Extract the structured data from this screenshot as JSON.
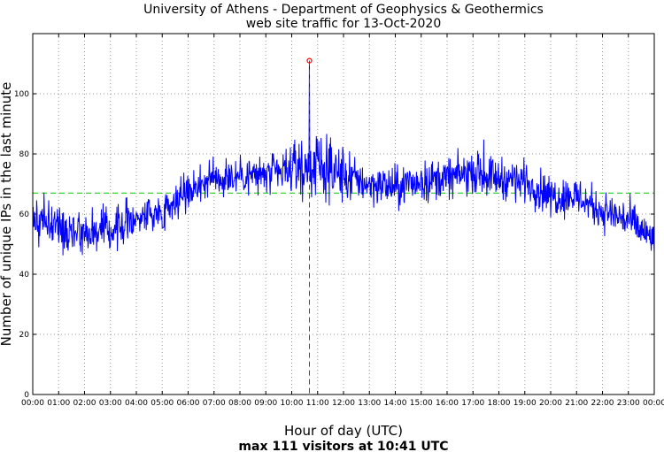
{
  "chart_data": {
    "type": "line",
    "title": "University of Athens - Department of Geophysics & Geothermics",
    "subtitle": "web site traffic for 13-Oct-2020",
    "xlabel": "Hour of day (UTC)",
    "caption": "max 111 visitors at 10:41 UTC",
    "ylabel": "Number of unique IPs in the last minute",
    "x_range_minutes": [
      0,
      1440
    ],
    "ylim": [
      0,
      120
    ],
    "x_tick_labels": [
      "00:00",
      "01:00",
      "02:00",
      "03:00",
      "04:00",
      "05:00",
      "06:00",
      "07:00",
      "08:00",
      "09:00",
      "10:00",
      "11:00",
      "12:00",
      "13:00",
      "14:00",
      "15:00",
      "16:00",
      "17:00",
      "18:00",
      "19:00",
      "20:00",
      "21:00",
      "22:00",
      "23:00",
      "00:00"
    ],
    "y_ticks": [
      0,
      20,
      40,
      60,
      80,
      100
    ],
    "grid": true,
    "series_color": "#0000ff",
    "average_value": 67,
    "average_color": "#00cc00",
    "peak": {
      "time_minutes": 641,
      "value": 111,
      "color": "#ff0000"
    },
    "hourly_profile": [
      {
        "hour": 0,
        "value": 59
      },
      {
        "hour": 1,
        "value": 56
      },
      {
        "hour": 2,
        "value": 54
      },
      {
        "hour": 3,
        "value": 55
      },
      {
        "hour": 4,
        "value": 59
      },
      {
        "hour": 5,
        "value": 61
      },
      {
        "hour": 6,
        "value": 68
      },
      {
        "hour": 7,
        "value": 72
      },
      {
        "hour": 8,
        "value": 73
      },
      {
        "hour": 9,
        "value": 73
      },
      {
        "hour": 10,
        "value": 74
      },
      {
        "hour": 11,
        "value": 76
      },
      {
        "hour": 12,
        "value": 73
      },
      {
        "hour": 13,
        "value": 70
      },
      {
        "hour": 14,
        "value": 69
      },
      {
        "hour": 15,
        "value": 71
      },
      {
        "hour": 16,
        "value": 72
      },
      {
        "hour": 17,
        "value": 74
      },
      {
        "hour": 18,
        "value": 72
      },
      {
        "hour": 19,
        "value": 71
      },
      {
        "hour": 20,
        "value": 66
      },
      {
        "hour": 21,
        "value": 66
      },
      {
        "hour": 22,
        "value": 61
      },
      {
        "hour": 23,
        "value": 58
      },
      {
        "hour": 24,
        "value": 51
      }
    ]
  }
}
